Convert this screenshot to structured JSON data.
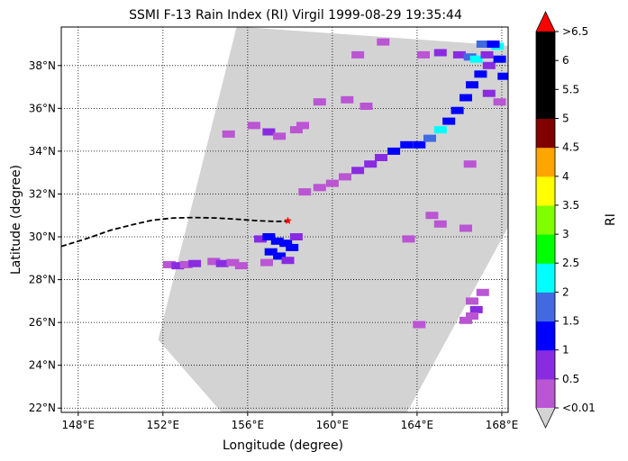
{
  "chart_data": {
    "type": "heatmap",
    "title": "SSMI F-13 Rain Index (RI) Virgil 1999-08-29 19:35:44",
    "xlabel": "Longitude (degree)",
    "ylabel": "Latitude (degree)",
    "xlim": [
      147.2,
      168.3
    ],
    "ylim": [
      21.8,
      39.8
    ],
    "xticks": [
      148,
      152,
      156,
      160,
      164,
      168
    ],
    "xtick_labels": [
      "148°E",
      "152°E",
      "156°E",
      "160°E",
      "164°E",
      "168°E"
    ],
    "yticks": [
      22,
      24,
      26,
      28,
      30,
      32,
      34,
      36,
      38
    ],
    "ytick_labels": [
      "22°N",
      "24°N",
      "26°N",
      "28°N",
      "30°N",
      "32°N",
      "34°N",
      "36°N",
      "38°N"
    ],
    "grid": true,
    "swath": {
      "color": "#d3d3d3",
      "corners": [
        [
          155.5,
          39.8
        ],
        [
          168.3,
          38.9
        ],
        [
          168.3,
          30.5
        ],
        [
          163.5,
          21.8
        ],
        [
          154.8,
          21.8
        ],
        [
          151.8,
          25.2
        ]
      ]
    },
    "track": {
      "style": "dashed",
      "color": "#000000",
      "lon": [
        147.2,
        148.5,
        149.5,
        150.5,
        151.5,
        152.5,
        153.5,
        154.5,
        155.5,
        156.5,
        157.3,
        158.0
      ],
      "lat": [
        29.55,
        29.95,
        30.3,
        30.55,
        30.78,
        30.88,
        30.9,
        30.88,
        30.82,
        30.75,
        30.72,
        30.73
      ]
    },
    "storm_marker": {
      "lon": 157.9,
      "lat": 30.75,
      "symbol": "star",
      "color": "#ff0000"
    },
    "rain_pixels": [
      [
        152.3,
        28.7,
        0.3
      ],
      [
        152.7,
        28.65,
        0.5
      ],
      [
        153.1,
        28.7,
        0.3
      ],
      [
        153.5,
        28.75,
        0.5
      ],
      [
        154.4,
        28.85,
        0.3
      ],
      [
        154.8,
        28.75,
        0.5
      ],
      [
        155.3,
        28.8,
        0.3
      ],
      [
        155.7,
        28.65,
        0.3
      ],
      [
        156.6,
        29.9,
        0.5
      ],
      [
        157.0,
        30.0,
        1.0
      ],
      [
        157.4,
        29.8,
        1.2
      ],
      [
        157.8,
        29.7,
        1.3
      ],
      [
        158.1,
        29.5,
        1.2
      ],
      [
        157.1,
        29.3,
        1.4
      ],
      [
        157.5,
        29.1,
        1.2
      ],
      [
        157.9,
        28.9,
        0.8
      ],
      [
        156.9,
        28.8,
        0.4
      ],
      [
        158.3,
        30.0,
        0.5
      ],
      [
        155.1,
        34.8,
        0.3
      ],
      [
        156.3,
        35.2,
        0.3
      ],
      [
        157.0,
        34.9,
        0.5
      ],
      [
        157.5,
        34.7,
        0.3
      ],
      [
        158.3,
        35.0,
        0.3
      ],
      [
        158.6,
        35.2,
        0.2
      ],
      [
        159.4,
        36.3,
        0.3
      ],
      [
        160.7,
        36.4,
        0.3
      ],
      [
        161.6,
        36.1,
        0.3
      ],
      [
        161.2,
        38.5,
        0.2
      ],
      [
        162.4,
        39.1,
        0.3
      ],
      [
        158.7,
        32.1,
        0.3
      ],
      [
        159.4,
        32.3,
        0.3
      ],
      [
        160.0,
        32.5,
        0.3
      ],
      [
        160.6,
        32.8,
        0.3
      ],
      [
        161.2,
        33.1,
        0.5
      ],
      [
        161.8,
        33.4,
        0.6
      ],
      [
        162.3,
        33.7,
        0.8
      ],
      [
        162.9,
        34.0,
        1.0
      ],
      [
        163.5,
        34.3,
        1.2
      ],
      [
        164.1,
        34.3,
        1.0
      ],
      [
        164.6,
        34.6,
        1.5
      ],
      [
        165.1,
        35.0,
        2.3
      ],
      [
        165.5,
        35.4,
        1.4
      ],
      [
        165.9,
        35.9,
        1.2
      ],
      [
        166.3,
        36.5,
        1.0
      ],
      [
        166.6,
        37.1,
        1.1
      ],
      [
        167.0,
        37.6,
        1.3
      ],
      [
        167.4,
        38.0,
        0.8
      ],
      [
        167.9,
        38.3,
        1.2
      ],
      [
        168.1,
        37.5,
        1.4
      ],
      [
        164.3,
        38.5,
        0.4
      ],
      [
        165.1,
        38.6,
        0.5
      ],
      [
        166.0,
        38.5,
        0.5
      ],
      [
        166.5,
        38.4,
        1.8
      ],
      [
        166.8,
        38.3,
        2.3
      ],
      [
        167.3,
        38.5,
        0.9
      ],
      [
        167.8,
        38.9,
        2.1
      ],
      [
        167.1,
        39.0,
        1.6
      ],
      [
        167.6,
        39.0,
        1.1
      ],
      [
        167.4,
        36.7,
        0.5
      ],
      [
        167.9,
        36.3,
        0.4
      ],
      [
        166.5,
        33.4,
        0.3
      ],
      [
        164.7,
        31.0,
        0.3
      ],
      [
        165.1,
        30.6,
        0.3
      ],
      [
        166.3,
        30.4,
        0.3
      ],
      [
        163.6,
        29.9,
        0.3
      ],
      [
        166.6,
        27.0,
        0.4
      ],
      [
        166.8,
        26.6,
        0.5
      ],
      [
        167.1,
        27.4,
        0.4
      ],
      [
        166.6,
        26.3,
        0.3
      ],
      [
        166.3,
        26.1,
        0.4
      ],
      [
        164.1,
        25.9,
        0.3
      ]
    ],
    "colorbar": {
      "label": "RI",
      "levels": [
        "<0.01",
        "0.5",
        "1",
        "1.5",
        "2",
        "2.5",
        "3",
        "3.5",
        "4",
        "4.5",
        "5",
        "5.5",
        "6",
        ">6.5"
      ],
      "colors": [
        "#ba55d3",
        "#8a2be2",
        "#0000ff",
        "#4169e1",
        "#00ffff",
        "#00ff00",
        "#7fff00",
        "#ffff00",
        "#ffa500",
        "#800000",
        "#000000",
        "#000000",
        "#000000"
      ],
      "under_color": "#d3d3d3",
      "over_color": "#ff0000"
    }
  }
}
